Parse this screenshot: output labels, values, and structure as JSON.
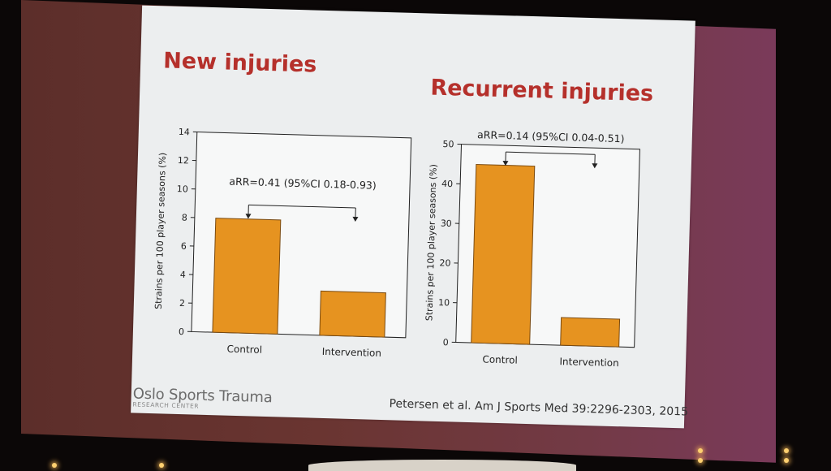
{
  "slide": {
    "left_title": "New injuries",
    "right_title": "Recurrent injuries",
    "logo_main": "Oslo Sports Trauma",
    "logo_sub": "RESEARCH CENTER",
    "citation": "Petersen et al. Am J Sports Med 39:2296-2303, 2015"
  },
  "colors": {
    "bar": "#e69320",
    "bar_stroke": "#7a4a10",
    "title": "#b5302b",
    "axis": "#222222"
  },
  "chart_data": [
    {
      "type": "bar",
      "title": "New injuries",
      "ylabel": "Strains per 100 player seasons (%)",
      "xlabel": "",
      "categories": [
        "Control",
        "Intervention"
      ],
      "values": [
        8.0,
        3.1
      ],
      "ylim": [
        0,
        14
      ],
      "yticks": [
        0,
        2,
        4,
        6,
        8,
        10,
        12,
        14
      ],
      "annotation": "aRR=0.41 (95%CI 0.18-0.93)",
      "grid": false
    },
    {
      "type": "bar",
      "title": "Recurrent injuries",
      "ylabel": "Strains per 100 player seasons (%)",
      "xlabel": "",
      "categories": [
        "Control",
        "Intervention"
      ],
      "values": [
        45,
        7
      ],
      "ylim": [
        0,
        50
      ],
      "yticks": [
        0,
        10,
        20,
        30,
        40,
        50
      ],
      "annotation": "aRR=0.14 (95%CI 0.04-0.51)",
      "grid": false
    }
  ]
}
